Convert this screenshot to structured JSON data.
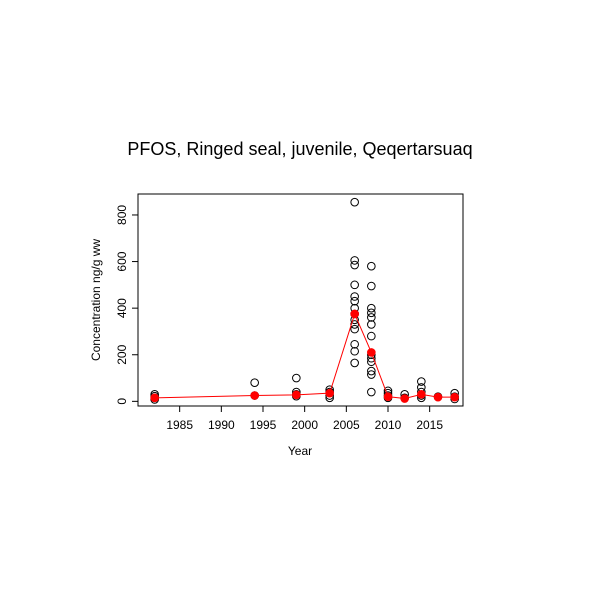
{
  "chart_data": {
    "type": "scatter",
    "title": "PFOS, Ringed seal, juvenile, Qeqertarsuaq",
    "xlabel": "Year",
    "ylabel": "Concentration ng/g ww",
    "xlim": [
      1980,
      2019
    ],
    "ylim": [
      -20,
      890
    ],
    "x_ticks": [
      1985,
      1990,
      1995,
      2000,
      2005,
      2010,
      2015
    ],
    "y_ticks": [
      0,
      200,
      400,
      600,
      800
    ],
    "grid": false,
    "legend": "none",
    "series": [
      {
        "kind": "points",
        "marker": "open-circle",
        "color": "#000000",
        "points": [
          {
            "x": 1982,
            "y": 30
          },
          {
            "x": 1982,
            "y": 22
          },
          {
            "x": 1982,
            "y": 15
          },
          {
            "x": 1982,
            "y": 8
          },
          {
            "x": 1994,
            "y": 80
          },
          {
            "x": 1994,
            "y": 25
          },
          {
            "x": 1999,
            "y": 100
          },
          {
            "x": 1999,
            "y": 40
          },
          {
            "x": 1999,
            "y": 30
          },
          {
            "x": 1999,
            "y": 22
          },
          {
            "x": 2003,
            "y": 50
          },
          {
            "x": 2003,
            "y": 40
          },
          {
            "x": 2003,
            "y": 25
          },
          {
            "x": 2003,
            "y": 15
          },
          {
            "x": 2006,
            "y": 855
          },
          {
            "x": 2006,
            "y": 605
          },
          {
            "x": 2006,
            "y": 585
          },
          {
            "x": 2006,
            "y": 500
          },
          {
            "x": 2006,
            "y": 450
          },
          {
            "x": 2006,
            "y": 430
          },
          {
            "x": 2006,
            "y": 400
          },
          {
            "x": 2006,
            "y": 375
          },
          {
            "x": 2006,
            "y": 350
          },
          {
            "x": 2006,
            "y": 330
          },
          {
            "x": 2006,
            "y": 310
          },
          {
            "x": 2006,
            "y": 245
          },
          {
            "x": 2006,
            "y": 215
          },
          {
            "x": 2006,
            "y": 165
          },
          {
            "x": 2008,
            "y": 580
          },
          {
            "x": 2008,
            "y": 495
          },
          {
            "x": 2008,
            "y": 400
          },
          {
            "x": 2008,
            "y": 380
          },
          {
            "x": 2008,
            "y": 360
          },
          {
            "x": 2008,
            "y": 330
          },
          {
            "x": 2008,
            "y": 280
          },
          {
            "x": 2008,
            "y": 200
          },
          {
            "x": 2008,
            "y": 185
          },
          {
            "x": 2008,
            "y": 170
          },
          {
            "x": 2008,
            "y": 130
          },
          {
            "x": 2008,
            "y": 115
          },
          {
            "x": 2008,
            "y": 40
          },
          {
            "x": 2010,
            "y": 45
          },
          {
            "x": 2010,
            "y": 35
          },
          {
            "x": 2010,
            "y": 25
          },
          {
            "x": 2010,
            "y": 15
          },
          {
            "x": 2012,
            "y": 30
          },
          {
            "x": 2012,
            "y": 15
          },
          {
            "x": 2014,
            "y": 85
          },
          {
            "x": 2014,
            "y": 60
          },
          {
            "x": 2014,
            "y": 40
          },
          {
            "x": 2014,
            "y": 25
          },
          {
            "x": 2014,
            "y": 15
          },
          {
            "x": 2016,
            "y": 20
          },
          {
            "x": 2018,
            "y": 35
          },
          {
            "x": 2018,
            "y": 20
          },
          {
            "x": 2018,
            "y": 10
          }
        ]
      },
      {
        "kind": "line-with-points",
        "marker": "filled-circle",
        "color": "#ff0000",
        "points": [
          {
            "x": 1982,
            "y": 15
          },
          {
            "x": 1994,
            "y": 25
          },
          {
            "x": 1999,
            "y": 28
          },
          {
            "x": 2003,
            "y": 35
          },
          {
            "x": 2006,
            "y": 375
          },
          {
            "x": 2008,
            "y": 210
          },
          {
            "x": 2010,
            "y": 20
          },
          {
            "x": 2012,
            "y": 12
          },
          {
            "x": 2014,
            "y": 30
          },
          {
            "x": 2016,
            "y": 18
          },
          {
            "x": 2018,
            "y": 18
          }
        ]
      }
    ]
  }
}
